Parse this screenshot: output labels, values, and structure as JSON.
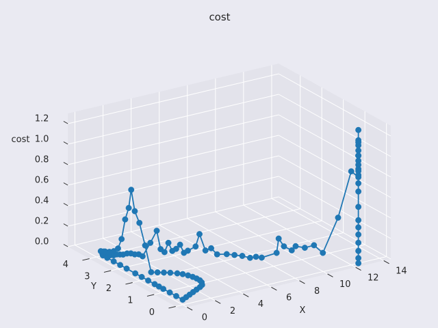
{
  "chart_data": {
    "type": "line",
    "subtype": "3d-line-with-markers",
    "title": "cost",
    "xlabel": "X",
    "ylabel": "Y",
    "zlabel": "cost",
    "xlim": [
      -0.5,
      14.5
    ],
    "ylim": [
      -0.2,
      5.0
    ],
    "zlim": [
      0.0,
      1.3
    ],
    "x_ticks": [
      0,
      2,
      4,
      6,
      8,
      10,
      12,
      14
    ],
    "y_ticks": [
      0,
      1,
      2,
      3,
      4
    ],
    "z_ticks": [
      "0.0",
      "0.2",
      "0.4",
      "0.6",
      "0.8",
      "1.0",
      "1.2"
    ],
    "grid": true,
    "series_color": "#1f77b4",
    "pane_color": "#e3e3eb",
    "background": "#eaeaf2",
    "series": [
      {
        "points": [
          [
            12.5,
            0.0,
            0.0
          ],
          [
            12.5,
            0.0,
            0.05
          ],
          [
            12.5,
            0.0,
            0.12
          ],
          [
            12.5,
            0.0,
            0.2
          ],
          [
            12.5,
            0.0,
            0.28
          ],
          [
            12.5,
            0.0,
            0.35
          ],
          [
            12.5,
            0.0,
            0.42
          ],
          [
            12.5,
            0.0,
            0.55
          ],
          [
            12.5,
            0.0,
            0.7
          ],
          [
            12.5,
            0.0,
            0.78
          ],
          [
            12.5,
            0.0,
            0.86
          ],
          [
            12.5,
            0.0,
            0.92
          ],
          [
            12.5,
            0.0,
            1.05
          ],
          [
            12.5,
            0.0,
            1.1
          ],
          [
            12.5,
            0.0,
            1.15
          ],
          [
            12.5,
            0.0,
            1.05
          ],
          [
            12.5,
            0.0,
            1.0
          ],
          [
            12.5,
            0.0,
            1.2
          ],
          [
            12.5,
            0.0,
            1.3
          ],
          [
            12.5,
            0.0,
            1.18
          ],
          [
            12.5,
            0.0,
            1.05
          ],
          [
            12.5,
            0.0,
            0.96
          ],
          [
            12.5,
            0.0,
            0.9
          ],
          [
            12.5,
            0.0,
            0.84
          ],
          [
            12.3,
            0.2,
            0.88
          ],
          [
            11.9,
            0.55,
            0.4
          ],
          [
            11.2,
            0.8,
            0.05
          ],
          [
            10.8,
            0.95,
            0.12
          ],
          [
            10.3,
            1.05,
            0.1
          ],
          [
            9.8,
            1.15,
            0.12
          ],
          [
            9.6,
            1.2,
            0.08
          ],
          [
            9.2,
            1.3,
            0.12
          ],
          [
            8.9,
            1.35,
            0.2
          ],
          [
            8.8,
            1.38,
            0.06
          ],
          [
            8.0,
            1.55,
            0.02
          ],
          [
            7.7,
            1.62,
            0.03
          ],
          [
            7.4,
            1.7,
            0.02
          ],
          [
            7.0,
            1.8,
            0.04
          ],
          [
            6.6,
            1.9,
            0.05
          ],
          [
            6.2,
            2.0,
            0.06
          ],
          [
            5.7,
            2.12,
            0.06
          ],
          [
            5.4,
            2.2,
            0.12
          ],
          [
            5.1,
            2.27,
            0.1
          ],
          [
            4.8,
            2.35,
            0.26
          ],
          [
            4.6,
            2.4,
            0.14
          ],
          [
            4.2,
            2.5,
            0.1
          ],
          [
            4.0,
            2.55,
            0.08
          ],
          [
            3.8,
            2.6,
            0.16
          ],
          [
            3.6,
            2.65,
            0.12
          ],
          [
            3.4,
            2.7,
            0.1
          ],
          [
            3.2,
            2.75,
            0.18
          ],
          [
            3.0,
            2.8,
            0.09
          ],
          [
            2.8,
            2.85,
            0.12
          ],
          [
            2.6,
            2.9,
            0.3
          ],
          [
            2.3,
            3.0,
            0.18
          ],
          [
            1.9,
            3.1,
            0.05
          ],
          [
            1.7,
            3.15,
            0.07
          ],
          [
            1.5,
            3.2,
            0.07
          ],
          [
            1.3,
            3.25,
            0.08
          ],
          [
            1.1,
            3.3,
            0.08
          ],
          [
            0.9,
            3.35,
            0.07
          ],
          [
            0.75,
            3.4,
            0.07
          ],
          [
            0.6,
            3.45,
            0.07
          ],
          [
            0.45,
            3.5,
            0.06
          ],
          [
            0.3,
            3.55,
            0.06
          ],
          [
            0.2,
            3.58,
            0.07
          ],
          [
            0.1,
            3.62,
            0.06
          ],
          [
            0.05,
            3.65,
            0.07
          ],
          [
            0.02,
            3.68,
            0.09
          ],
          [
            0.0,
            3.7,
            0.05
          ],
          [
            0.0,
            3.72,
            0.06
          ],
          [
            0.0,
            3.5,
            0.05
          ],
          [
            0.0,
            3.2,
            0.05
          ],
          [
            0.0,
            2.9,
            0.05
          ],
          [
            0.0,
            2.6,
            0.05
          ],
          [
            0.0,
            2.2,
            0.05
          ],
          [
            0.0,
            1.9,
            0.05
          ],
          [
            0.0,
            1.6,
            0.05
          ],
          [
            0.0,
            1.3,
            0.05
          ],
          [
            0.0,
            1.1,
            0.05
          ],
          [
            0.0,
            0.9,
            0.05
          ],
          [
            0.0,
            0.6,
            0.05
          ],
          [
            0.0,
            0.3,
            0.05
          ],
          [
            0.0,
            0.0,
            0.05
          ],
          [
            0.4,
            0.1,
            0.05
          ],
          [
            0.8,
            0.2,
            0.05
          ],
          [
            1.2,
            0.3,
            0.05
          ],
          [
            1.6,
            0.4,
            0.05
          ],
          [
            2.0,
            0.5,
            0.05
          ],
          [
            2.3,
            0.6,
            0.05
          ],
          [
            2.5,
            0.75,
            0.05
          ],
          [
            2.6,
            0.9,
            0.05
          ],
          [
            2.6,
            1.05,
            0.05
          ],
          [
            2.55,
            1.2,
            0.05
          ],
          [
            2.45,
            1.35,
            0.05
          ],
          [
            2.3,
            1.5,
            0.05
          ],
          [
            2.1,
            1.62,
            0.05
          ],
          [
            1.8,
            1.75,
            0.05
          ],
          [
            1.5,
            1.85,
            0.05
          ],
          [
            1.2,
            1.95,
            0.05
          ],
          [
            0.9,
            2.05,
            0.05
          ],
          [
            0.7,
            2.2,
            0.3
          ],
          [
            0.6,
            2.4,
            0.5
          ],
          [
            0.5,
            2.55,
            0.6
          ],
          [
            0.4,
            2.65,
            0.8
          ],
          [
            0.3,
            2.7,
            0.62
          ],
          [
            0.2,
            2.8,
            0.5
          ],
          [
            0.1,
            2.9,
            0.3
          ],
          [
            0.0,
            3.0,
            0.2
          ],
          [
            0.0,
            3.2,
            0.15
          ],
          [
            0.0,
            3.4,
            0.12
          ],
          [
            0.0,
            3.6,
            0.1
          ],
          [
            0.0,
            3.8,
            0.08
          ]
        ]
      }
    ]
  }
}
